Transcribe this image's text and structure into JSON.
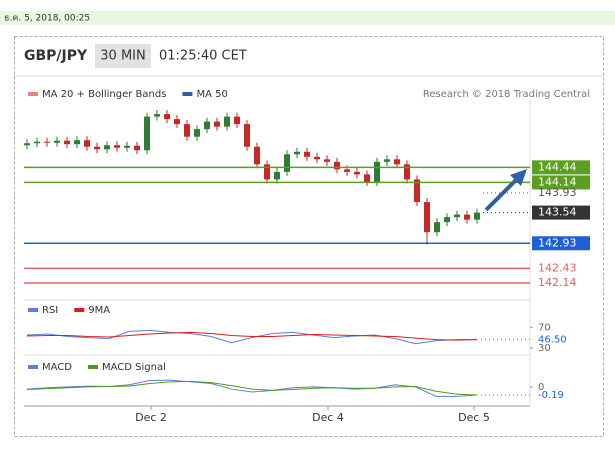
{
  "header": {
    "timestamp": "ธ.ค. 5, 2018, 00:25"
  },
  "chart_data": [
    {
      "type": "candlestick",
      "title": "GBP/JPY",
      "interval": "30 MIN",
      "time": "01:25:40 CET",
      "credit": "Research © 2018 Trading Central",
      "legend": [
        {
          "name": "MA 20 + Bollinger Bands",
          "color": "#f08080"
        },
        {
          "name": "MA 50",
          "color": "#2a5caa"
        }
      ],
      "up_color": "#2e7d32",
      "down_color": "#c62828",
      "open": [
        144.88,
        144.92,
        144.95,
        144.93,
        144.97,
        144.9,
        144.98,
        144.85,
        144.8,
        144.88,
        144.83,
        144.87,
        144.78,
        145.45,
        145.5,
        145.4,
        145.3,
        145.05,
        145.2,
        145.35,
        145.25,
        145.45,
        145.3,
        144.85,
        144.5,
        144.2,
        144.35,
        144.7,
        144.75,
        144.65,
        144.6,
        144.55,
        144.4,
        144.35,
        144.3,
        144.15,
        144.55,
        144.6,
        144.5,
        144.2,
        143.75,
        143.15,
        143.35,
        143.45,
        143.5,
        143.4
      ],
      "high": [
        145.0,
        145.03,
        145.03,
        145.05,
        145.05,
        145.06,
        145.06,
        144.93,
        144.96,
        144.96,
        144.95,
        144.95,
        145.53,
        145.58,
        145.58,
        145.48,
        145.38,
        145.28,
        145.43,
        145.43,
        145.53,
        145.53,
        145.38,
        144.93,
        144.58,
        144.43,
        144.78,
        144.83,
        144.83,
        144.73,
        144.68,
        144.63,
        144.48,
        144.43,
        144.38,
        144.63,
        144.68,
        144.68,
        144.58,
        144.28,
        143.83,
        143.43,
        143.53,
        143.58,
        143.58,
        143.62
      ],
      "low": [
        144.8,
        144.84,
        144.85,
        144.85,
        144.82,
        144.82,
        144.77,
        144.72,
        144.72,
        144.75,
        144.75,
        144.7,
        144.7,
        145.37,
        145.32,
        145.22,
        144.97,
        144.97,
        145.12,
        145.17,
        145.17,
        145.22,
        144.77,
        144.42,
        144.12,
        144.12,
        144.27,
        144.62,
        144.57,
        144.52,
        144.47,
        144.32,
        144.27,
        144.22,
        144.07,
        144.07,
        144.47,
        144.42,
        144.12,
        143.67,
        142.9,
        143.07,
        143.27,
        143.37,
        143.32,
        143.32
      ],
      "close": [
        144.92,
        144.95,
        144.93,
        144.97,
        144.9,
        144.98,
        144.85,
        144.8,
        144.88,
        144.83,
        144.87,
        144.78,
        145.45,
        145.5,
        145.4,
        145.3,
        145.05,
        145.2,
        145.35,
        145.25,
        145.45,
        145.3,
        144.85,
        144.5,
        144.2,
        144.35,
        144.7,
        144.75,
        144.65,
        144.6,
        144.55,
        144.4,
        144.35,
        144.3,
        144.15,
        144.55,
        144.6,
        144.5,
        144.2,
        143.75,
        143.15,
        143.35,
        143.45,
        143.5,
        143.4,
        143.54
      ],
      "ylim": [
        142.0,
        145.8
      ],
      "levels": [
        {
          "value": 144.44,
          "color": "#5aa01e",
          "style": "solid",
          "label_style": "box"
        },
        {
          "value": 144.14,
          "color": "#5aa01e",
          "style": "solid",
          "label_style": "box"
        },
        {
          "value": 143.93,
          "color": "#555555",
          "style": "dotted",
          "label_style": "text"
        },
        {
          "value": 143.54,
          "color": "#333333",
          "style": "dotted",
          "label_style": "box"
        },
        {
          "value": 142.93,
          "color": "#1f5fd6",
          "style": "solid",
          "label_style": "box"
        },
        {
          "value": 142.43,
          "color": "#e06060",
          "style": "solid",
          "label_style": "text"
        },
        {
          "value": 142.14,
          "color": "#e06060",
          "style": "solid",
          "label_style": "text"
        }
      ],
      "xticks": [
        {
          "value": 12.4,
          "label": "Dec 2"
        },
        {
          "value": 30.1,
          "label": "Dec 4"
        },
        {
          "value": 44.7,
          "label": "Dec 5"
        }
      ]
    },
    {
      "type": "line",
      "ylim": [
        22,
        88
      ],
      "yticks": [
        70,
        30
      ],
      "series": [
        {
          "name": "RSI",
          "color": "#5b7fd6",
          "values": [
            55,
            57,
            52,
            50,
            48,
            62,
            64,
            60,
            58,
            52,
            40,
            50,
            58,
            60,
            55,
            50,
            53,
            55,
            48,
            38,
            44,
            46,
            46.5
          ]
        },
        {
          "name": "9MA",
          "color": "#d62020",
          "values": [
            53,
            54,
            54,
            52,
            51,
            54,
            57,
            59,
            60,
            58,
            54,
            52,
            52,
            54,
            56,
            55,
            54,
            53,
            52,
            49,
            46,
            45,
            46
          ]
        }
      ],
      "last_label": {
        "value": 46.5,
        "label": "46.50"
      }
    },
    {
      "type": "line",
      "ylim": [
        -0.4,
        0.35
      ],
      "yticks": [
        0
      ],
      "series": [
        {
          "name": "MACD",
          "color": "#5b7fd6",
          "values": [
            -0.05,
            -0.02,
            0.0,
            0.02,
            0.01,
            0.05,
            0.15,
            0.16,
            0.12,
            0.08,
            -0.05,
            -0.12,
            -0.08,
            -0.02,
            0.0,
            -0.02,
            -0.05,
            -0.03,
            0.05,
            0.0,
            -0.22,
            -0.22,
            -0.19
          ]
        },
        {
          "name": "MACD Signal",
          "color": "#4c9a1e",
          "values": [
            -0.06,
            -0.04,
            -0.02,
            0.0,
            0.01,
            0.02,
            0.08,
            0.12,
            0.13,
            0.1,
            0.03,
            -0.05,
            -0.08,
            -0.06,
            -0.03,
            -0.02,
            -0.03,
            -0.03,
            0.0,
            0.01,
            -0.1,
            -0.17,
            -0.19
          ]
        }
      ],
      "last_label": {
        "value": -0.19,
        "label": "-0.19"
      }
    }
  ]
}
